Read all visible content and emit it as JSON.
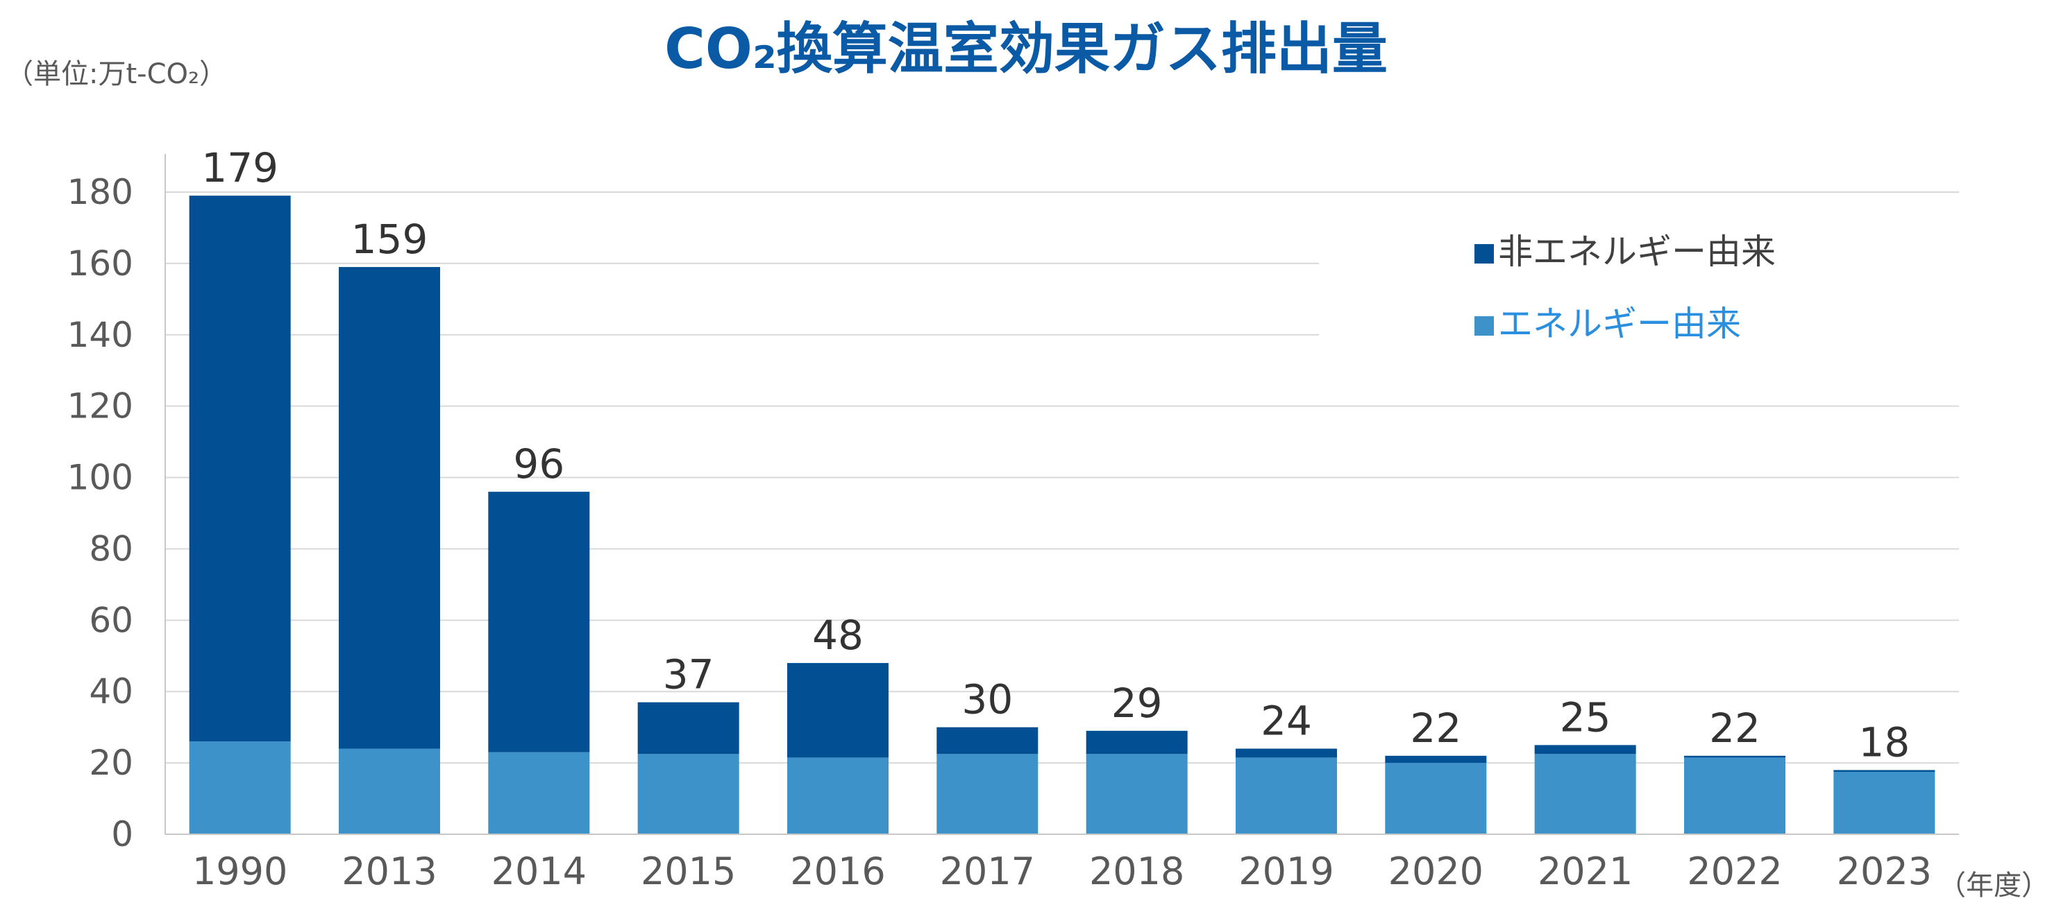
{
  "chart_data": {
    "type": "bar",
    "stacked": true,
    "title": "CO₂換算温室効果ガス排出量",
    "unit_label": "（単位:万t-CO₂）",
    "xlabel": "（年度）",
    "ylabel": "",
    "ylim": [
      0,
      180
    ],
    "yticks": [
      0,
      20,
      40,
      60,
      80,
      100,
      120,
      140,
      160,
      180
    ],
    "grid": true,
    "legend_position": "top-right",
    "categories": [
      "1990",
      "2013",
      "2014",
      "2015",
      "2016",
      "2017",
      "2018",
      "2019",
      "2020",
      "2021",
      "2022",
      "2023"
    ],
    "series": [
      {
        "name": "エネルギー由来",
        "color": "#3c92c9",
        "values": [
          26,
          24,
          23,
          22.5,
          21.5,
          22.5,
          22.5,
          21.5,
          20,
          22.5,
          21.5,
          17.5
        ]
      },
      {
        "name": "非エネルギー由来",
        "color": "#024f93",
        "values": [
          153,
          135,
          73,
          14.5,
          26.5,
          7.5,
          6.5,
          2.5,
          2,
          2.5,
          0.5,
          0.5
        ]
      }
    ],
    "totals": [
      "179",
      "159",
      "96",
      "37",
      "48",
      "30",
      "29",
      "24",
      "22",
      "25",
      "22",
      "18"
    ],
    "colors": {
      "title": "#0a5aa6",
      "total_label": "#333333",
      "axis_text": "#595959",
      "gridline": "#d9d9d9",
      "energy_legend_text": "#2a8fdf",
      "non_energy_legend_text": "#404040"
    }
  }
}
